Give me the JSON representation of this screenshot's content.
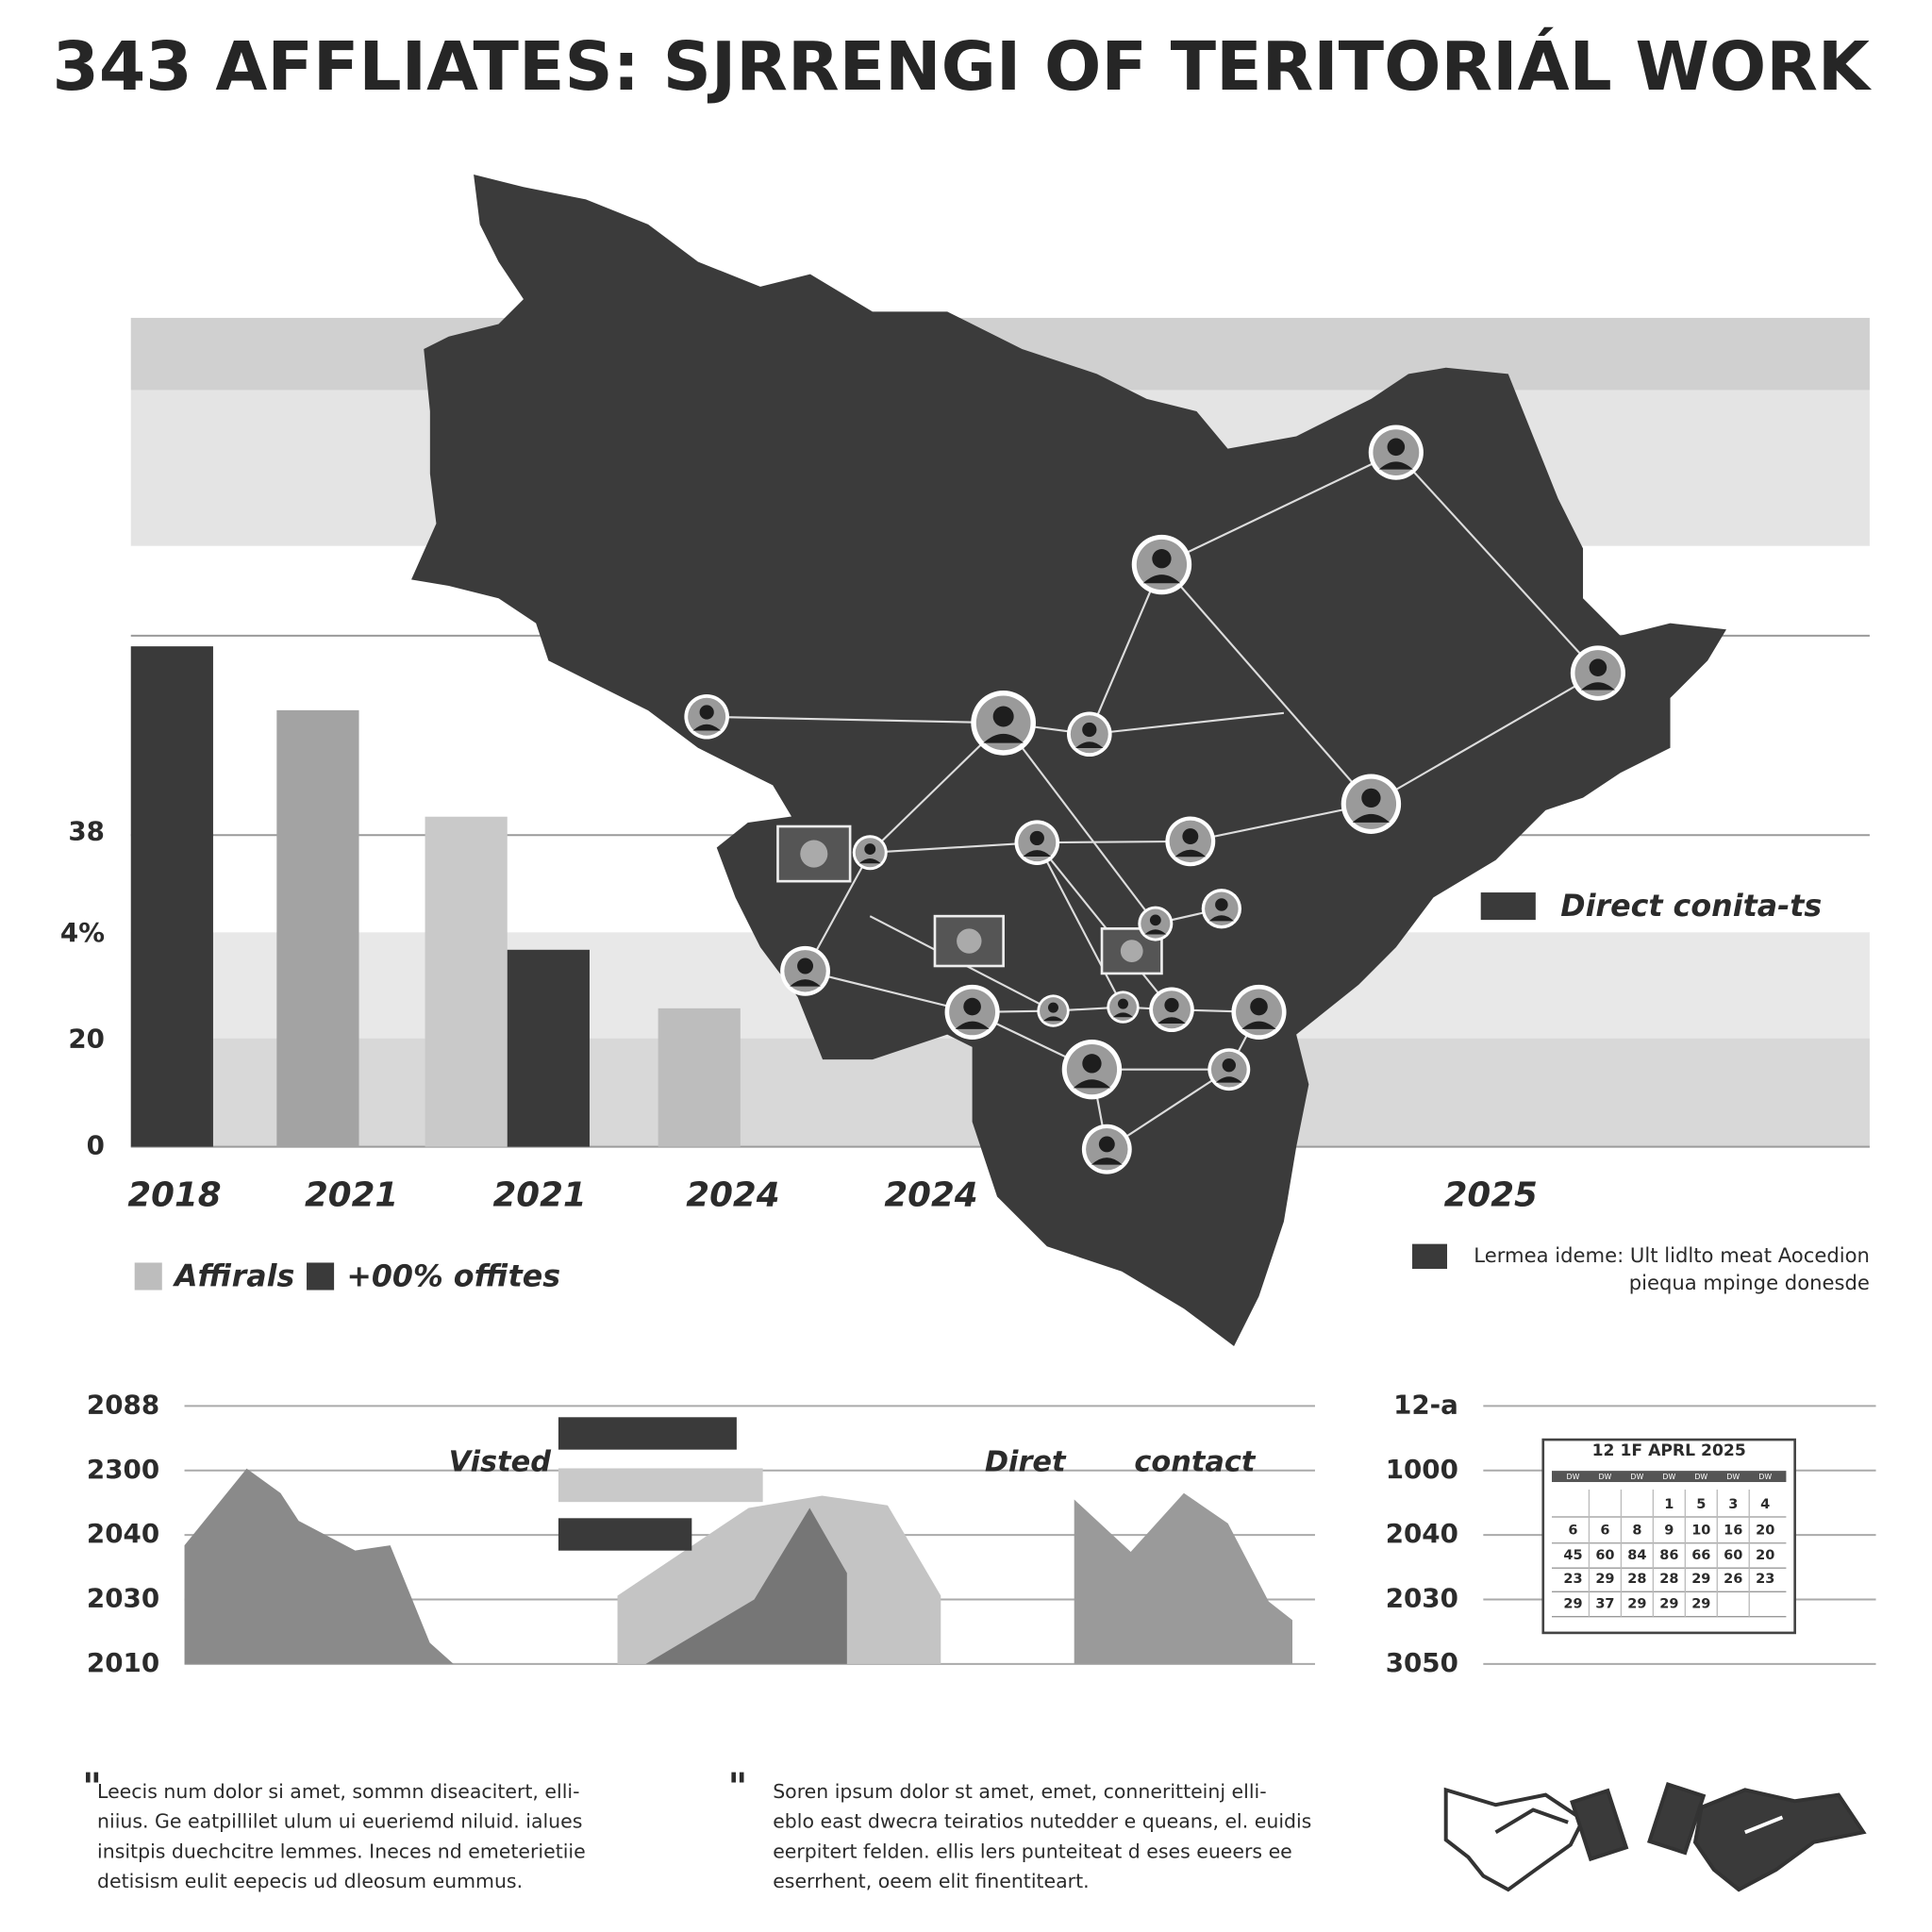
{
  "title": "343 AFFLIATES: SJRRENGI OF TERITORIÁL WORK",
  "chart_data": [
    {
      "type": "bar",
      "categories": [
        "2018",
        "2021",
        "2021",
        "2024",
        "2024",
        "2025"
      ],
      "values": [
        94,
        82,
        62,
        37,
        26,
        null
      ],
      "colors": [
        "#3a3a3a",
        "#a3a3a3",
        "#c9c9c9",
        "#3a3a3a",
        "#bdbdbd",
        null
      ],
      "ylim": [
        0,
        96
      ],
      "yticks": [
        0,
        20,
        {
          "value": 40,
          "label": "4%"
        },
        {
          "value": 59,
          "label": "38"
        }
      ],
      "grid": false,
      "legend": [
        {
          "name": "Affirals",
          "color": "#bdbdbd"
        },
        {
          "name": "+00% offites",
          "color": "#3a3a3a"
        }
      ]
    },
    {
      "type": "area",
      "xlim": [
        0,
        100
      ],
      "ylim": [
        0,
        4
      ],
      "yticks": [
        {
          "value": 0,
          "label": "2010"
        },
        {
          "value": 1,
          "label": "2030"
        },
        {
          "value": 2,
          "label": "2040"
        },
        {
          "value": 3,
          "label": "2300"
        },
        {
          "value": 4,
          "label": "2088"
        }
      ],
      "grid": true,
      "annotations": [
        "Visted",
        "Diret",
        "contact"
      ],
      "series": [
        {
          "color": "#8a8a8a",
          "x": [
            0,
            5.5,
            8.5,
            10.1,
            15.1,
            18.2,
            21.7,
            23.8
          ],
          "values": [
            1.84,
            3.03,
            2.65,
            2.22,
            1.76,
            1.84,
            0.33,
            0
          ]
        },
        {
          "color": "#c4c4c4",
          "x": [
            38.3,
            49.9,
            56.4,
            62.2,
            66.9
          ],
          "values": [
            1.06,
            2.42,
            2.61,
            2.46,
            1.06
          ]
        },
        {
          "color": "#767676",
          "x": [
            40.8,
            50.4,
            55.3,
            58.6
          ],
          "values": [
            0,
            1.0,
            2.42,
            1.41
          ]
        },
        {
          "color": "#9a9a9a",
          "x": [
            78.7,
            83.7,
            88.4,
            92.3,
            95.9,
            98.0
          ],
          "values": [
            2.55,
            1.74,
            2.65,
            2.18,
            0.97,
            0.68
          ]
        }
      ]
    },
    {
      "type": "axis",
      "ylim": [
        0,
        4
      ],
      "yticks": [
        {
          "value": 0,
          "label": "3050"
        },
        {
          "value": 1,
          "label": "2030"
        },
        {
          "value": 2,
          "label": "2040"
        },
        {
          "value": 3,
          "label": "1000"
        },
        {
          "value": 4,
          "label": "12-a"
        }
      ],
      "grid": true
    }
  ],
  "map_legend": {
    "contacts": "Direct conita-ts",
    "note": [
      "Lermea ideme: Ult lidlto meat Aocedion",
      "piequa mpinge donesde"
    ]
  },
  "calendar": {
    "title": "12 1F APRL 2025",
    "header": [
      "DW",
      "DW",
      "DW",
      "DW",
      "DW",
      "DW",
      "DW"
    ],
    "rows": [
      [
        "",
        "",
        "",
        "1",
        "5",
        "3",
        "4"
      ],
      [
        "6",
        "6",
        "8",
        "9",
        "10",
        "16",
        "20"
      ],
      [
        "45",
        "60",
        "84",
        "86",
        "66",
        "60",
        "20"
      ],
      [
        "23",
        "29",
        "28",
        "28",
        "29",
        "26",
        "23"
      ],
      [
        "29",
        "37",
        "29",
        "29",
        "29",
        "",
        ""
      ]
    ]
  },
  "paragraphs": [
    [
      "Leecis num dolor si amet, sommn diseacitert, elli-",
      "niius. Ge eatpillilet ulum ui eueriemd niluid. ialues",
      "insitpis duechcitre lemmes. Ineces nd emeterietiie",
      "detisism eulit eepecis ud dleosum eummus."
    ],
    [
      "Soren ipsum dolor st amet, emet, conneritteinj elli-",
      "eblo east dwecra teiratios nutedder e queans, el. euidis",
      "eerpitert felden. ellis lers punteiteat d eses eueers ee",
      "eserrhent, oeem elit finentiteart."
    ]
  ]
}
